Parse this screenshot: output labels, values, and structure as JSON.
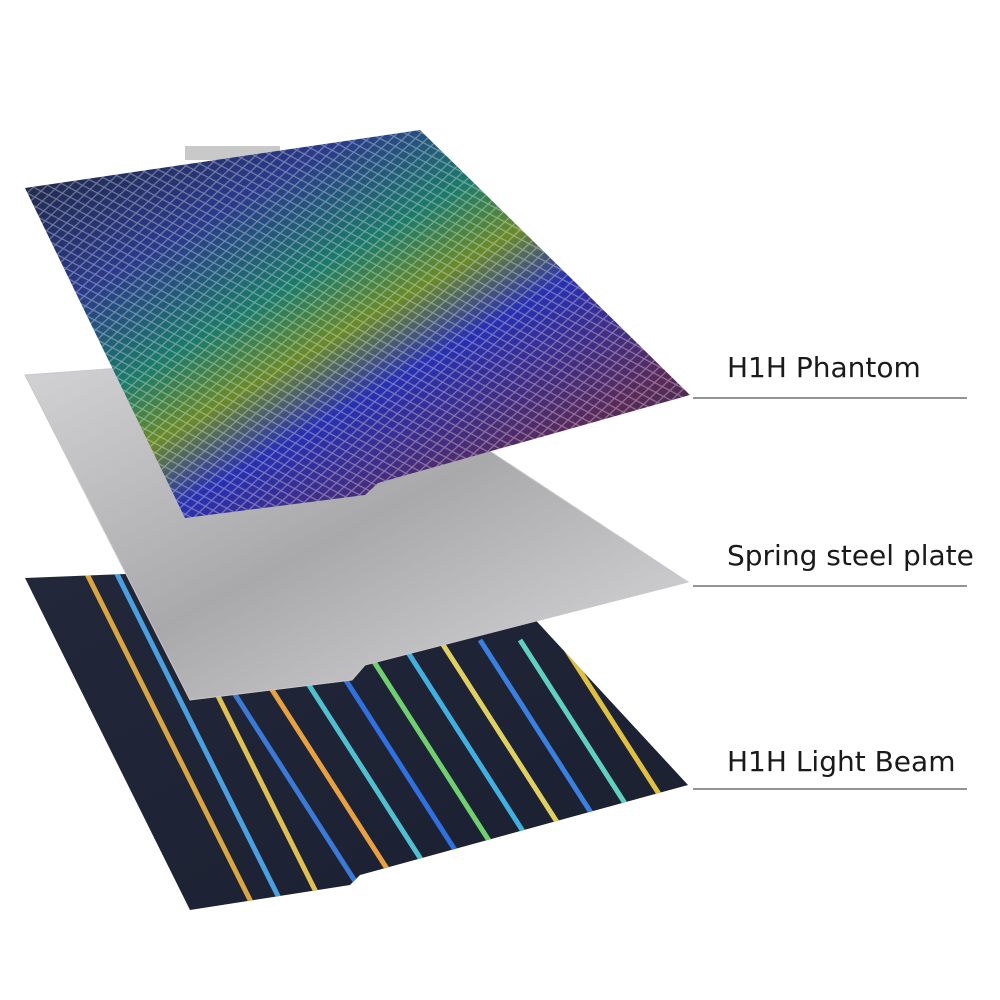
{
  "layers": [
    {
      "label": "H1H Phantom"
    },
    {
      "label": "Spring steel plate"
    },
    {
      "label": "H1H Light Beam"
    }
  ]
}
